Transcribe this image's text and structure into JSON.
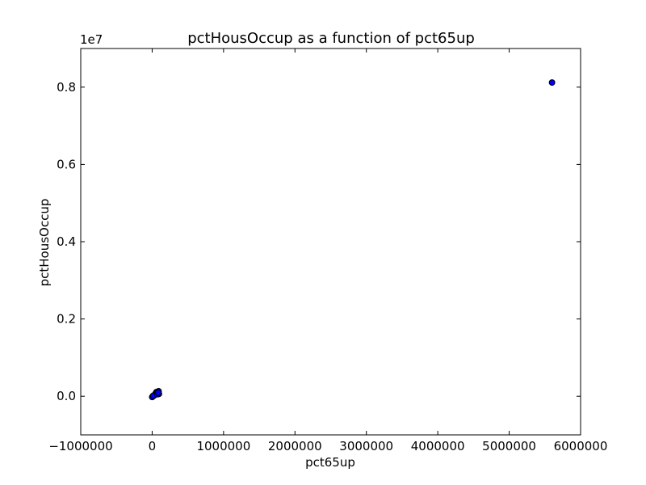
{
  "chart_data": {
    "type": "scatter",
    "title": "pctHousOccup as a function of pct65up",
    "xlabel": "pct65up",
    "ylabel": "pctHousOccup",
    "xlim": [
      -1000000,
      6000000
    ],
    "ylim": [
      -1000000,
      9000000
    ],
    "x_ticks": [
      -1000000,
      0,
      1000000,
      2000000,
      3000000,
      4000000,
      5000000,
      6000000
    ],
    "x_tick_labels": [
      "−1000000",
      "0",
      "1000000",
      "2000000",
      "3000000",
      "4000000",
      "5000000",
      "6000000"
    ],
    "y_ticks": [
      0,
      2000000,
      4000000,
      6000000,
      8000000
    ],
    "y_tick_labels": [
      "0.0",
      "0.2",
      "0.4",
      "0.6",
      "0.8"
    ],
    "y_offset_label": "1e7",
    "grid": false,
    "point_color": "#0000ff",
    "point_edge_color": "#000000",
    "points": [
      {
        "x": 5600000,
        "y": 8120000
      },
      {
        "x": 90000,
        "y": 130000
      },
      {
        "x": 75000,
        "y": 95000
      },
      {
        "x": 60000,
        "y": 110000
      },
      {
        "x": 50000,
        "y": 75000
      },
      {
        "x": 95000,
        "y": 60000
      },
      {
        "x": 40000,
        "y": 40000
      },
      {
        "x": 30000,
        "y": 25000
      },
      {
        "x": 20000,
        "y": 10000
      },
      {
        "x": 10000,
        "y": 0
      },
      {
        "x": 5000,
        "y": -10000
      },
      {
        "x": 0,
        "y": -20000
      },
      {
        "x": 15000,
        "y": 15000
      },
      {
        "x": 70000,
        "y": 50000
      },
      {
        "x": 85000,
        "y": 90000
      }
    ]
  }
}
